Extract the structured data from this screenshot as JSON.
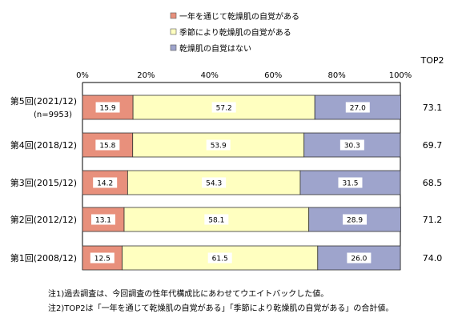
{
  "chart_data": {
    "type": "bar",
    "stacked": true,
    "orientation": "horizontal",
    "legend": {
      "position": "top-right",
      "entries": [
        "一年を通じて乾燥肌の自覚がある",
        "季節により乾燥肌の自覚がある",
        "乾燥肌の自覚はない"
      ]
    },
    "top2_header": "TOP2",
    "xlim": [
      0,
      100
    ],
    "x_ticks": [
      "0%",
      "20%",
      "40%",
      "60%",
      "80%",
      "100%"
    ],
    "grid": false,
    "categories": [
      {
        "label": "第5回(2021/12)",
        "sublabel": "(n=9953)"
      },
      {
        "label": "第4回(2018/12)",
        "sublabel": ""
      },
      {
        "label": "第3回(2015/12)",
        "sublabel": ""
      },
      {
        "label": "第2回(2012/12)",
        "sublabel": ""
      },
      {
        "label": "第1回(2008/12)",
        "sublabel": ""
      }
    ],
    "series": [
      {
        "name": "一年を通じて乾燥肌の自覚がある",
        "color": "#e8907c",
        "values": [
          15.9,
          15.8,
          14.2,
          13.1,
          12.5
        ],
        "labels": [
          "15.9",
          "15.8",
          "14.2",
          "13.1",
          "12.5"
        ]
      },
      {
        "name": "季節により乾燥肌の自覚がある",
        "color": "#ffffc0",
        "values": [
          57.2,
          53.9,
          54.3,
          58.1,
          61.5
        ],
        "labels": [
          "57.2",
          "53.9",
          "54.3",
          "58.1",
          "61.5"
        ]
      },
      {
        "name": "乾燥肌の自覚はない",
        "color": "#9ea4cc",
        "values": [
          27.0,
          30.3,
          31.5,
          28.9,
          26.0
        ],
        "labels": [
          "27.0",
          "30.3",
          "31.5",
          "28.9",
          "26.0"
        ]
      }
    ],
    "top2": [
      "73.1",
      "69.7",
      "68.5",
      "71.2",
      "74.0"
    ]
  },
  "notes": [
    "注1)過去調査は、今回調査の性年代構成比にあわせてウエイトバックした値。",
    "注2)TOP2は「一年を通じて乾燥肌の自覚がある」「季節により乾燥肌の自覚がある」の合計値。"
  ]
}
